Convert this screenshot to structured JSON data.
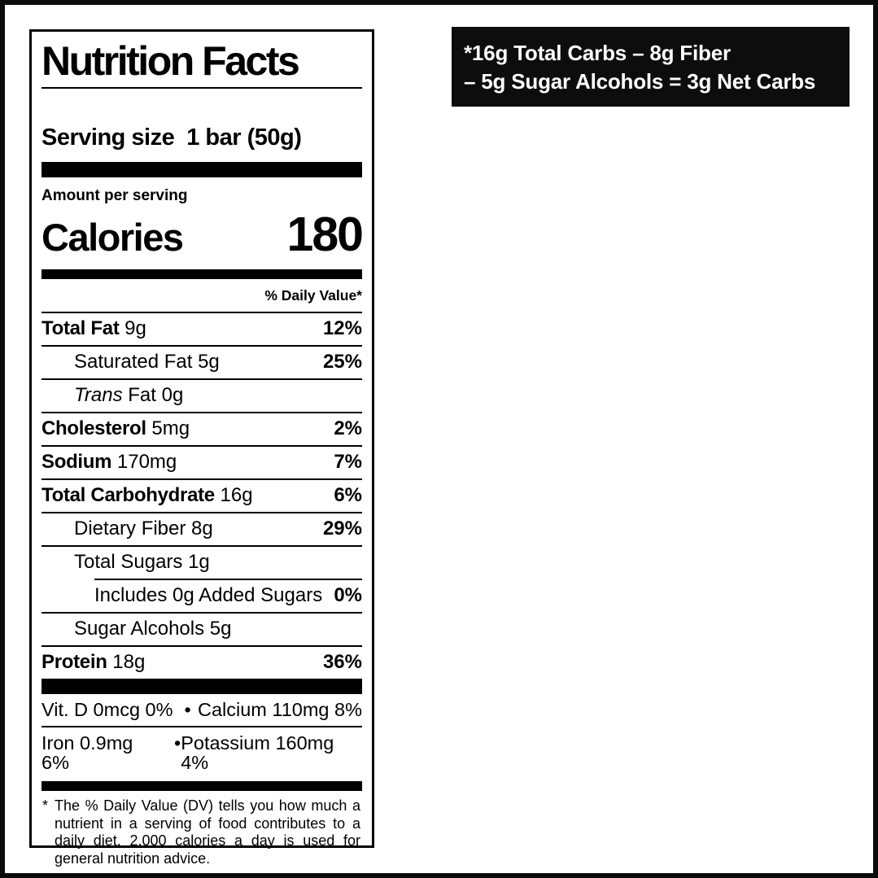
{
  "colors": {
    "label_border": "#000000",
    "text": "#000000",
    "callout_bg": "#0d0d0d",
    "callout_text": "#ffffff"
  },
  "callout": {
    "line1": "*16g Total Carbs – 8g Fiber",
    "line2": "– 5g Sugar Alcohols = 3g Net Carbs"
  },
  "label": {
    "title": "Nutrition Facts",
    "serving_label": "Serving size",
    "serving_value": "1 bar (50g)",
    "amount_per_serving": "Amount per serving",
    "calories_label": "Calories",
    "calories_value": "180",
    "daily_value_header": "% Daily Value*",
    "rows": [
      {
        "italic": "",
        "bold": "Total Fat",
        "regular": " 9g",
        "dv": "12%",
        "indent": 0,
        "sep": "full"
      },
      {
        "italic": "",
        "bold": "",
        "regular": "Saturated Fat 5g",
        "dv": "25%",
        "indent": 1,
        "sep": "full"
      },
      {
        "italic": "Trans",
        "bold": "",
        "regular": " Fat 0g",
        "dv": "",
        "indent": 1,
        "sep": "full"
      },
      {
        "italic": "",
        "bold": "Cholesterol",
        "regular": " 5mg",
        "dv": "2%",
        "indent": 0,
        "sep": "full"
      },
      {
        "italic": "",
        "bold": "Sodium",
        "regular": " 170mg",
        "dv": "7%",
        "indent": 0,
        "sep": "full"
      },
      {
        "italic": "",
        "bold": "Total Carbohydrate",
        "regular": " 16g",
        "dv": "6%",
        "indent": 0,
        "sep": "full"
      },
      {
        "italic": "",
        "bold": "",
        "regular": "Dietary Fiber 8g",
        "dv": "29%",
        "indent": 1,
        "sep": "full"
      },
      {
        "italic": "",
        "bold": "",
        "regular": "Total Sugars 1g",
        "dv": "",
        "indent": 1,
        "sep": "full"
      },
      {
        "italic": "",
        "bold": "",
        "regular": "Includes 0g Added Sugars",
        "dv": "0%",
        "indent": 2,
        "sep": "inset"
      },
      {
        "italic": "",
        "bold": "",
        "regular": "Sugar Alcohols 5g",
        "dv": "",
        "indent": 1,
        "sep": "full"
      },
      {
        "italic": "",
        "bold": "Protein",
        "regular": " 18g",
        "dv": "36%",
        "indent": 0,
        "sep": "full"
      }
    ],
    "micronutrients": [
      {
        "left": "Vit. D 0mcg 0%",
        "bullet": "•",
        "right": "Calcium 110mg 8%"
      },
      {
        "left": "Iron 0.9mg 6%",
        "bullet": "•",
        "right": "Potassium 160mg 4%"
      }
    ],
    "footnote_marker": "*",
    "footnote_text": "The % Daily Value (DV) tells you how much a nutrient in a serving of food contributes to a daily diet. 2,000 calories a day is used for general nutrition advice."
  }
}
